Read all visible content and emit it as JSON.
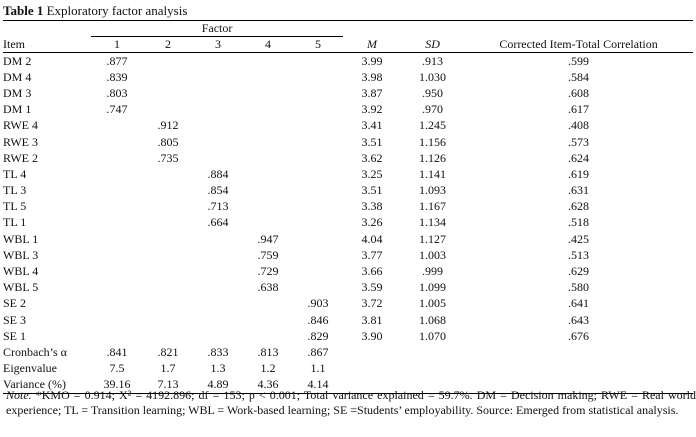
{
  "table": {
    "label": "Table 1",
    "title": "Exploratory factor analysis",
    "factor_header": "Factor",
    "columns": {
      "item": "Item",
      "f1": "1",
      "f2": "2",
      "f3": "3",
      "f4": "4",
      "f5": "5",
      "m": "M",
      "sd": "SD",
      "corr": "Corrected Item-Total Correlation"
    },
    "rows": [
      {
        "item": "DM 2",
        "f1": ".877",
        "f2": "",
        "f3": "",
        "f4": "",
        "f5": "",
        "m": "3.99",
        "sd": ".913",
        "corr": ".599"
      },
      {
        "item": "DM 4",
        "f1": ".839",
        "f2": "",
        "f3": "",
        "f4": "",
        "f5": "",
        "m": "3.98",
        "sd": "1.030",
        "corr": ".584"
      },
      {
        "item": "DM 3",
        "f1": ".803",
        "f2": "",
        "f3": "",
        "f4": "",
        "f5": "",
        "m": "3.87",
        "sd": ".950",
        "corr": ".608"
      },
      {
        "item": "DM 1",
        "f1": ".747",
        "f2": "",
        "f3": "",
        "f4": "",
        "f5": "",
        "m": "3.92",
        "sd": ".970",
        "corr": ".617"
      },
      {
        "item": "RWE 4",
        "f1": "",
        "f2": ".912",
        "f3": "",
        "f4": "",
        "f5": "",
        "m": "3.41",
        "sd": "1.245",
        "corr": ".408"
      },
      {
        "item": "RWE 3",
        "f1": "",
        "f2": ".805",
        "f3": "",
        "f4": "",
        "f5": "",
        "m": "3.51",
        "sd": "1.156",
        "corr": ".573"
      },
      {
        "item": "RWE 2",
        "f1": "",
        "f2": ".735",
        "f3": "",
        "f4": "",
        "f5": "",
        "m": "3.62",
        "sd": "1.126",
        "corr": ".624"
      },
      {
        "item": "TL 4",
        "f1": "",
        "f2": "",
        "f3": ".884",
        "f4": "",
        "f5": "",
        "m": "3.25",
        "sd": "1.141",
        "corr": ".619"
      },
      {
        "item": "TL 3",
        "f1": "",
        "f2": "",
        "f3": ".854",
        "f4": "",
        "f5": "",
        "m": "3.51",
        "sd": "1.093",
        "corr": ".631"
      },
      {
        "item": "TL 5",
        "f1": "",
        "f2": "",
        "f3": ".713",
        "f4": "",
        "f5": "",
        "m": "3.38",
        "sd": "1.167",
        "corr": ".628"
      },
      {
        "item": "TL 1",
        "f1": "",
        "f2": "",
        "f3": ".664",
        "f4": "",
        "f5": "",
        "m": "3.26",
        "sd": "1.134",
        "corr": ".518"
      },
      {
        "item": "WBL 1",
        "f1": "",
        "f2": "",
        "f3": "",
        "f4": ".947",
        "f5": "",
        "m": "4.04",
        "sd": "1.127",
        "corr": ".425"
      },
      {
        "item": "WBL 3",
        "f1": "",
        "f2": "",
        "f3": "",
        "f4": ".759",
        "f5": "",
        "m": "3.77",
        "sd": "1.003",
        "corr": ".513"
      },
      {
        "item": "WBL 4",
        "f1": "",
        "f2": "",
        "f3": "",
        "f4": ".729",
        "f5": "",
        "m": "3.66",
        "sd": ".999",
        "corr": ".629"
      },
      {
        "item": "WBL 5",
        "f1": "",
        "f2": "",
        "f3": "",
        "f4": ".638",
        "f5": "",
        "m": "3.59",
        "sd": "1.099",
        "corr": ".580"
      },
      {
        "item": "SE 2",
        "f1": "",
        "f2": "",
        "f3": "",
        "f4": "",
        "f5": ".903",
        "m": "3.72",
        "sd": "1.005",
        "corr": ".641"
      },
      {
        "item": "SE 3",
        "f1": "",
        "f2": "",
        "f3": "",
        "f4": "",
        "f5": ".846",
        "m": "3.81",
        "sd": "1.068",
        "corr": ".643"
      },
      {
        "item": "SE 1",
        "f1": "",
        "f2": "",
        "f3": "",
        "f4": "",
        "f5": ".829",
        "m": "3.90",
        "sd": "1.070",
        "corr": ".676"
      }
    ],
    "summary": [
      {
        "label": "Cronbach’s α",
        "f1": ".841",
        "f2": ".821",
        "f3": ".833",
        "f4": ".813",
        "f5": ".867"
      },
      {
        "label": "Eigenvalue",
        "f1": "7.5",
        "f2": "1.7",
        "f3": "1.3",
        "f4": "1.2",
        "f5": "1.1"
      },
      {
        "label": "Variance (%)",
        "f1": "39.16",
        "f2": "7.13",
        "f3": "4.89",
        "f4": "4.36",
        "f5": "4.14"
      }
    ],
    "note": {
      "lead": "Note.",
      "body": " *KMO = 0.914; X² = 4192.896; df = 153; p < 0.001; Total variance explained = 59.7%. DM = Decision making; RWE = Real world experience; TL = Transition learning; WBL = Work-based learning; SE =Students’ employability. Source: Emerged from statistical analysis."
    }
  }
}
